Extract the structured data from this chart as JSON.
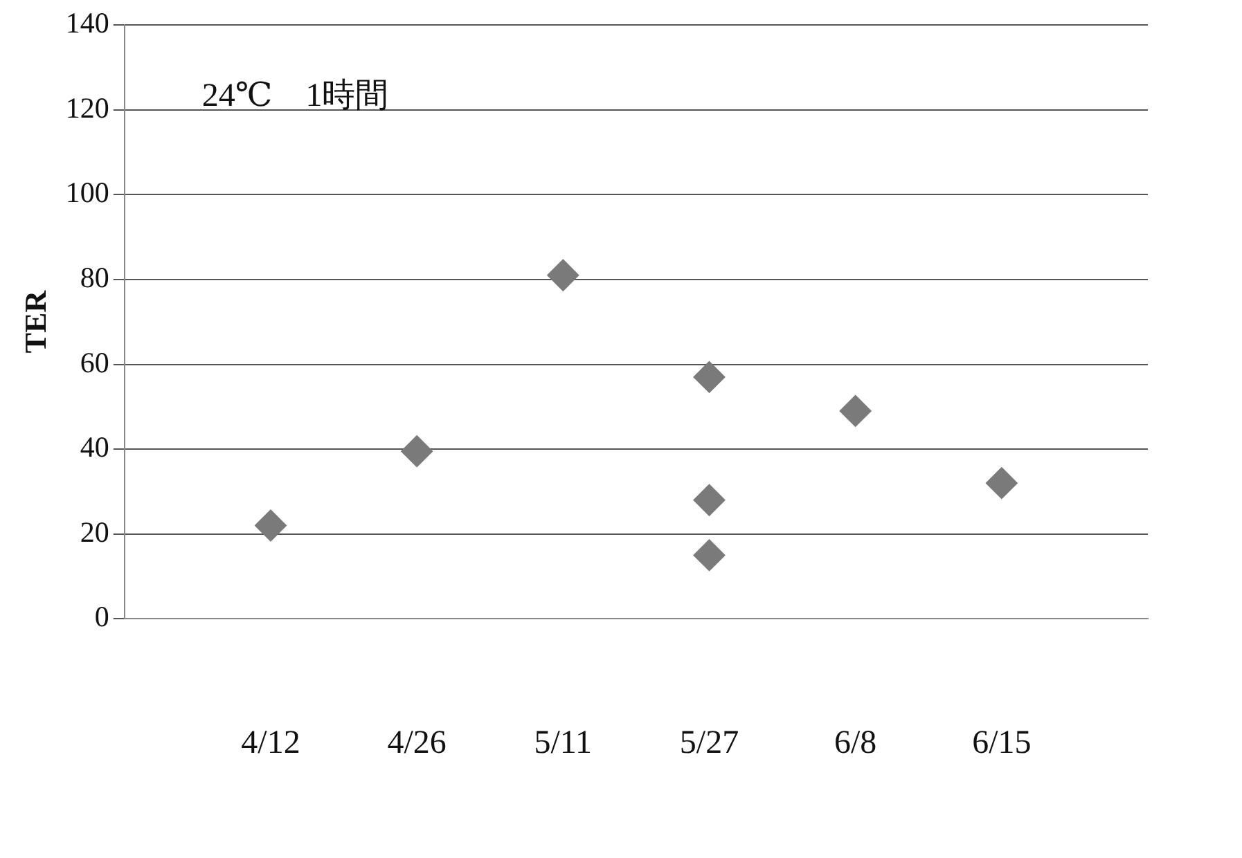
{
  "chart_data": {
    "type": "scatter",
    "ylabel": "TER",
    "annotations": [
      "24℃　1時間"
    ],
    "categories": [
      null,
      "4/12",
      "4/26",
      "5/11",
      "5/27",
      "6/8",
      "6/15",
      null
    ],
    "series": [
      {
        "color": "#7a7a7a",
        "x": [
          "4/12",
          "4/26",
          "5/11",
          "5/27",
          "5/27",
          "5/27",
          "6/8",
          "6/15"
        ],
        "values": [
          22,
          39.5,
          81,
          57,
          28,
          15,
          49,
          32
        ]
      }
    ],
    "ylim": [
      0,
      140
    ],
    "yticks": [
      0,
      20,
      40,
      60,
      80,
      100,
      120,
      140
    ],
    "grid": "y",
    "legend": false,
    "marker": "diamond"
  }
}
